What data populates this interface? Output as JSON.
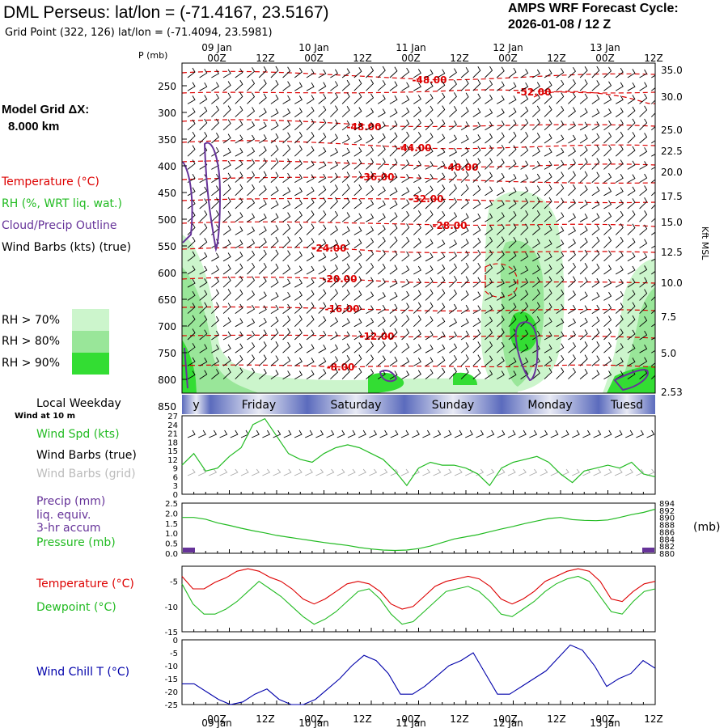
{
  "header": {
    "title": "DML Perseus:  lat/lon = (-71.4167, 23.5167)",
    "grid_point": "Grid Point (322, 126) lat/lon = (-71.4094, 23.5981)",
    "cycle_title": "AMPS WRF Forecast Cycle:",
    "cycle_value": "2026-01-08 / 12  Z"
  },
  "legend": {
    "model_grid_label": "Model Grid ΔX:",
    "model_grid_value": "8.000 km",
    "temperature": "Temperature (°C)",
    "rh": "RH (%, WRT liq. wat.)",
    "cloud": "Cloud/Precip Outline",
    "wind_barbs": "Wind Barbs (kts) (true)",
    "rh70": "RH > 70%",
    "rh80": "RH > 80%",
    "rh90": "RH > 90%",
    "rh70_color": "#ccf5cc",
    "rh80_color": "#99e699",
    "rh90_color": "#33dd33",
    "local_weekday": "Local Weekday",
    "wind_10m": "Wind at 10 m",
    "wind_spd": "Wind Spd (kts)",
    "wind_barbs_true": "Wind Barbs (true)",
    "wind_barbs_grid": "Wind Barbs (grid)",
    "precip1": "Precip (mm)",
    "precip2": "liq. equiv.",
    "precip3": "3-hr accum",
    "pressure": "Pressure (mb)",
    "pressure_unit": "(mb)",
    "temp2": "Temperature (°C)",
    "dewpoint": "Dewpoint (°C)",
    "wind_chill": "Wind Chill T (°C)"
  },
  "top_axis": {
    "p_label": "P (mb)",
    "right_label": "Kft MSL",
    "hour_labels": [
      "00Z",
      "12Z",
      "00Z",
      "12Z",
      "00Z",
      "12Z",
      "00Z",
      "12Z",
      "00Z",
      "12Z"
    ],
    "date_labels": [
      "09 Jan",
      "10 Jan",
      "11 Jan",
      "12 Jan",
      "13 Jan"
    ]
  },
  "weekdays": [
    "y",
    "Friday",
    "Saturday",
    "Sunday",
    "Monday",
    "Tuesd"
  ],
  "colors": {
    "temperature": "#dd0000",
    "cloud": "#663399",
    "wind_speed": "#22bb22",
    "wind_chill": "#0000aa",
    "precip": "#663399",
    "weekday_dark": "#5b6bbd",
    "weekday_light": "#e8eaf4"
  },
  "chart_data": [
    {
      "type": "heatmap",
      "name": "cross-section",
      "ylabel": "P (mb)",
      "y_ticks": [
        "250",
        "300",
        "350",
        "400",
        "450",
        "500",
        "550",
        "600",
        "650",
        "700",
        "750",
        "800",
        "850"
      ],
      "y_right_ticks": [
        "35.0",
        "30.0",
        "25.0",
        "22.5",
        "20.0",
        "17.5",
        "15.0",
        "12.5",
        "10.0",
        "7.5",
        "5.0",
        "2.53"
      ],
      "temperature_contours": [
        "-48.00",
        "-52.00",
        "-48.00",
        "-44.00",
        "-40.00",
        "-36.00",
        "-32.00",
        "-28.00",
        "-24.00",
        "-20.00",
        "-16.00",
        "-12.00",
        "-8.00"
      ]
    },
    {
      "type": "line",
      "name": "wind",
      "y_ticks": [
        "27",
        "24",
        "21",
        "18",
        "15",
        "12",
        "9",
        "6",
        "3",
        "0"
      ],
      "ylim": [
        0,
        27
      ],
      "wind_speed": [
        10,
        14,
        8,
        9,
        13,
        16,
        24,
        26,
        20,
        14,
        12,
        11,
        14,
        16,
        17,
        16,
        14,
        12,
        8,
        3,
        9,
        11,
        10,
        10,
        9,
        7,
        3,
        9,
        11,
        12,
        13,
        11,
        7,
        4,
        8,
        9,
        10,
        9,
        11,
        7,
        6
      ]
    },
    {
      "type": "line",
      "name": "precip-pressure",
      "y_ticks": [
        "2.5",
        "2.0",
        "1.5",
        "1.0",
        "0.5",
        "0.0"
      ],
      "y_right_ticks": [
        "894",
        "892",
        "890",
        "888",
        "886",
        "884",
        "882",
        "880"
      ],
      "ylim": [
        0,
        2.5
      ],
      "pressure_ylim": [
        880,
        894
      ],
      "pressure": [
        890,
        890,
        889.5,
        888.5,
        887.8,
        887,
        886.3,
        885.7,
        885,
        884.5,
        884,
        883.5,
        883,
        882.6,
        882.2,
        881.6,
        881.2,
        880.9,
        880.8,
        880.9,
        881.3,
        882,
        883,
        884,
        884.6,
        885.2,
        886,
        886.8,
        887.5,
        888.3,
        889,
        889.7,
        890,
        889.4,
        889.2,
        889.1,
        889.3,
        890,
        890.8,
        891.4,
        892.3
      ]
    },
    {
      "type": "line",
      "name": "temperature-dewpoint",
      "y_ticks": [
        "-5",
        "-10",
        "-15"
      ],
      "ylim": [
        -15,
        -2
      ],
      "temperature": [
        -4,
        -6.5,
        -6.5,
        -5.2,
        -4.3,
        -3,
        -2.5,
        -3,
        -4.2,
        -5,
        -6.5,
        -8.5,
        -9.5,
        -8.5,
        -7,
        -5.5,
        -5,
        -5.5,
        -7,
        -9.5,
        -10.5,
        -10,
        -8,
        -6,
        -5,
        -4.5,
        -4,
        -4.5,
        -6,
        -8.5,
        -9.5,
        -8.5,
        -7,
        -5,
        -4,
        -3,
        -2.5,
        -3,
        -5,
        -8.5,
        -9,
        -7,
        -5.5,
        -5
      ],
      "dewpoint": [
        -5.5,
        -9.5,
        -11.5,
        -11.5,
        -10.5,
        -9,
        -7,
        -5,
        -6.5,
        -8,
        -10,
        -12,
        -13.5,
        -12.5,
        -11,
        -9,
        -7,
        -6.5,
        -8.5,
        -11.5,
        -13.5,
        -13,
        -11,
        -9,
        -7,
        -6.5,
        -6,
        -7,
        -9,
        -11.5,
        -12,
        -10.5,
        -9,
        -7,
        -5.5,
        -4.5,
        -4,
        -5,
        -8,
        -11,
        -11.5,
        -9,
        -7,
        -6.5
      ]
    },
    {
      "type": "line",
      "name": "wind-chill",
      "y_ticks": [
        "0",
        "-5",
        "-10",
        "-15",
        "-20",
        "-25"
      ],
      "ylim": [
        -25,
        0
      ],
      "wind_chill": [
        -17,
        -17,
        -20,
        -23,
        -25,
        -24,
        -21,
        -19,
        -23,
        -25,
        -25,
        -23,
        -19,
        -15,
        -10,
        -6,
        -8,
        -13,
        -21,
        -21,
        -18,
        -14,
        -10,
        -8,
        -5,
        -13,
        -21,
        -21,
        -18,
        -15,
        -12,
        -7,
        -2,
        -4,
        -10,
        -18,
        -15,
        -13,
        -8,
        -11
      ]
    }
  ]
}
